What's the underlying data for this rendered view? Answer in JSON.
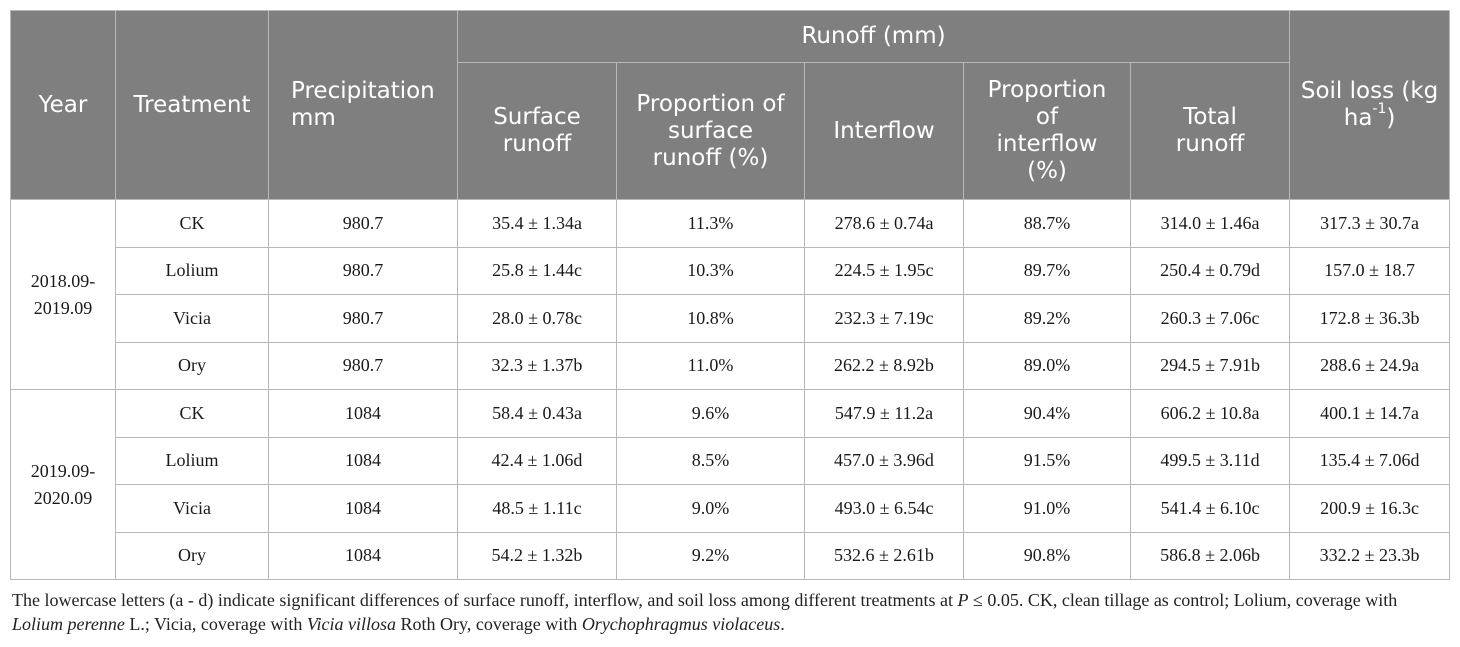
{
  "table": {
    "headers": {
      "year": "Year",
      "treatment": "Treatment",
      "precipitation_line1": "Precipitation",
      "precipitation_line2": "mm",
      "runoff_group": "Runoff (mm)",
      "surface_runoff": "Surface runoff",
      "proportion_surface_runoff": "Proportion of surface runoff (%)",
      "interflow": "Interflow",
      "proportion_interflow": "Proportion of interflow (%)",
      "total_runoff": "Total runoff",
      "soil_loss_prefix": "Soil loss (kg ha",
      "soil_loss_sup": "-1",
      "soil_loss_suffix": ")"
    },
    "groups": [
      {
        "year_line1": "2018.09-",
        "year_line2": "2019.09",
        "rows": [
          {
            "treatment": "CK",
            "precipitation": "980.7",
            "surface_runoff": "35.4 ± 1.34a",
            "prop_surface": "11.3%",
            "interflow": "278.6 ± 0.74a",
            "prop_interflow": "88.7%",
            "total_runoff": "314.0 ± 1.46a",
            "soil_loss": "317.3 ± 30.7a"
          },
          {
            "treatment": "Lolium",
            "precipitation": "980.7",
            "surface_runoff": "25.8 ± 1.44c",
            "prop_surface": "10.3%",
            "interflow": "224.5 ± 1.95c",
            "prop_interflow": "89.7%",
            "total_runoff": "250.4 ± 0.79d",
            "soil_loss": "157.0 ± 18.7"
          },
          {
            "treatment": "Vicia",
            "precipitation": "980.7",
            "surface_runoff": "28.0 ± 0.78c",
            "prop_surface": "10.8%",
            "interflow": "232.3 ± 7.19c",
            "prop_interflow": "89.2%",
            "total_runoff": "260.3 ± 7.06c",
            "soil_loss": "172.8 ± 36.3b"
          },
          {
            "treatment": "Ory",
            "precipitation": "980.7",
            "surface_runoff": "32.3 ± 1.37b",
            "prop_surface": "11.0%",
            "interflow": "262.2 ± 8.92b",
            "prop_interflow": "89.0%",
            "total_runoff": "294.5 ± 7.91b",
            "soil_loss": "288.6 ± 24.9a"
          }
        ]
      },
      {
        "year_line1": "2019.09-",
        "year_line2": "2020.09",
        "rows": [
          {
            "treatment": "CK",
            "precipitation": "1084",
            "surface_runoff": "58.4 ± 0.43a",
            "prop_surface": "9.6%",
            "interflow": "547.9 ± 11.2a",
            "prop_interflow": "90.4%",
            "total_runoff": "606.2 ± 10.8a",
            "soil_loss": "400.1 ± 14.7a"
          },
          {
            "treatment": "Lolium",
            "precipitation": "1084",
            "surface_runoff": "42.4 ± 1.06d",
            "prop_surface": "8.5%",
            "interflow": "457.0 ± 3.96d",
            "prop_interflow": "91.5%",
            "total_runoff": "499.5 ± 3.11d",
            "soil_loss": "135.4 ± 7.06d"
          },
          {
            "treatment": "Vicia",
            "precipitation": "1084",
            "surface_runoff": "48.5 ± 1.11c",
            "prop_surface": "9.0%",
            "interflow": "493.0 ± 6.54c",
            "prop_interflow": "91.0%",
            "total_runoff": "541.4 ± 6.10c",
            "soil_loss": "200.9 ± 16.3c"
          },
          {
            "treatment": "Ory",
            "precipitation": "1084",
            "surface_runoff": "54.2 ± 1.32b",
            "prop_surface": "9.2%",
            "interflow": "532.6 ± 2.61b",
            "prop_interflow": "90.8%",
            "total_runoff": "586.8 ± 2.06b",
            "soil_loss": "332.2 ± 23.3b"
          }
        ]
      }
    ]
  },
  "footnote": {
    "line1_before_p": "The lowercase letters (a - d) indicate significant differences of surface runoff, interflow, and soil loss among different treatments at ",
    "p_symbol": "P",
    "line1_after_p": " ≤ 0.05. CK, clean tillage as control; Lolium, coverage with",
    "lolium_species": "Lolium perenne",
    "after_lolium": " L.; Vicia, coverage with ",
    "vicia_species": "Vicia villosa",
    "after_vicia": " Roth Ory, coverage with ",
    "ory_species": "Orychophragmus violaceus",
    "end": "."
  }
}
